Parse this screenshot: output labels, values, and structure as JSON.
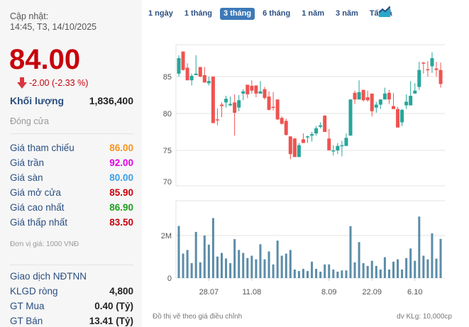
{
  "update": {
    "label": "Cập nhật:",
    "time": "14:45, T3, 14/10/2025"
  },
  "price": "84.00",
  "change": "-2.00 (-2.33 %)",
  "volume": {
    "label": "Khối lượng",
    "value": "1,836,400"
  },
  "status": "Đóng cửa",
  "stats": [
    {
      "label": "Giá tham chiếu",
      "value": "86.00",
      "color": "#f7941d"
    },
    {
      "label": "Giá trần",
      "value": "92.00",
      "color": "#e100e1"
    },
    {
      "label": "Giá sàn",
      "value": "80.00",
      "color": "#3aa0e8"
    },
    {
      "label": "Giá mở cửa",
      "value": "85.90",
      "color": "#c8000b"
    },
    {
      "label": "Giá cao nhất",
      "value": "86.90",
      "color": "#1f9e1f"
    },
    {
      "label": "Giá thấp nhất",
      "value": "83.50",
      "color": "#c8000b"
    }
  ],
  "unit_note": "Đơn vị giá: 1000 VNĐ",
  "foreign": {
    "title": "Giao dịch NĐTNN",
    "rows": [
      {
        "label": "KLGD ròng",
        "value": "4,800"
      },
      {
        "label": "GT Mua",
        "value": "0.40 (Tỷ)"
      },
      {
        "label": "GT Bán",
        "value": "13.41 (Tỷ)"
      }
    ]
  },
  "tabs": [
    "1 ngày",
    "1 tháng",
    "3 tháng",
    "6 tháng",
    "1 năm",
    "3 năm",
    "Tất cả"
  ],
  "active_tab": "3 tháng",
  "footer": {
    "left": "Đồ thị vẽ theo giá điều chỉnh",
    "right": "dv KLg: 10,000cp"
  },
  "chart_data": {
    "type": "candlestick",
    "colors": {
      "up": "#26a69a",
      "down": "#ef5350",
      "volume": "#5b8ca8"
    },
    "price_ticks": [
      70,
      75,
      80,
      85
    ],
    "volume_ticks": [
      {
        "v": 0,
        "label": "0"
      },
      {
        "v": 2,
        "label": "2M"
      }
    ],
    "x_ticks": [
      {
        "i": 7,
        "label": "28.07"
      },
      {
        "i": 17,
        "label": "11.08"
      },
      {
        "i": 35,
        "label": "8.09"
      },
      {
        "i": 45,
        "label": "22.09"
      },
      {
        "i": 55,
        "label": "6.10"
      }
    ],
    "ohlc": [
      [
        85.4,
        87.9,
        85.0,
        87.5
      ],
      [
        88.4,
        88.4,
        85.8,
        85.9
      ],
      [
        86.2,
        86.8,
        84.5,
        84.5
      ],
      [
        84.5,
        85.4,
        83.8,
        85.1
      ],
      [
        85.2,
        87.9,
        85.2,
        85.4
      ],
      [
        86.3,
        86.3,
        84.9,
        85.0
      ],
      [
        85.2,
        86.3,
        84.2,
        84.2
      ],
      [
        84.1,
        85.0,
        83.8,
        84.4
      ],
      [
        85.0,
        85.0,
        78.7,
        78.7
      ],
      [
        79.2,
        80.7,
        78.4,
        79.1
      ],
      [
        81.2,
        81.5,
        79.5,
        81.0
      ],
      [
        81.5,
        82.4,
        80.8,
        82.0
      ],
      [
        81.1,
        82.3,
        81.0,
        81.3
      ],
      [
        81.5,
        82.6,
        77.0,
        80.1
      ],
      [
        80.8,
        82.5,
        80.3,
        81.8
      ],
      [
        82.7,
        83.3,
        81.8,
        83.0
      ],
      [
        83.9,
        83.9,
        82.1,
        82.6
      ],
      [
        83.75,
        84.5,
        82.7,
        83.1
      ],
      [
        83.8,
        83.8,
        82.2,
        82.7
      ],
      [
        82.7,
        84.4,
        82.7,
        83.0
      ],
      [
        83.3,
        83.6,
        81.9,
        82.1
      ],
      [
        82.3,
        83.0,
        80.4,
        80.5
      ],
      [
        80.9,
        82.9,
        80.4,
        80.8
      ],
      [
        81.9,
        81.9,
        79.1,
        79.2
      ],
      [
        79.4,
        79.6,
        78.5,
        78.6
      ],
      [
        79.0,
        79.3,
        77.0,
        77.1
      ],
      [
        76.9,
        76.9,
        73.8,
        74.5
      ],
      [
        76.6,
        76.7,
        74.1,
        74.1
      ],
      [
        74.1,
        76.0,
        74.1,
        75.7
      ],
      [
        76.5,
        77.3,
        76.0,
        76.0
      ],
      [
        76.8,
        77.0,
        76.0,
        76.9
      ],
      [
        77.0,
        77.5,
        76.2,
        77.2
      ],
      [
        77.3,
        78.3,
        77.0,
        78.0
      ],
      [
        78.2,
        78.8,
        78.0,
        78.4
      ],
      [
        79.7,
        79.8,
        77.5,
        77.5
      ],
      [
        76.6,
        77.9,
        75.0,
        75.0
      ],
      [
        74.9,
        75.7,
        74.3,
        75.0
      ],
      [
        75.0,
        76.0,
        74.5,
        75.6
      ],
      [
        75.6,
        76.3,
        74.2,
        75.7
      ],
      [
        75.6,
        77.3,
        75.6,
        76.7
      ],
      [
        77.0,
        81.9,
        77.0,
        81.9
      ],
      [
        82.8,
        83.1,
        81.3,
        81.9
      ],
      [
        81.9,
        84.5,
        81.9,
        82.9
      ],
      [
        83.2,
        83.2,
        81.6,
        81.8
      ],
      [
        82.2,
        83.1,
        81.6,
        81.8
      ],
      [
        82.7,
        82.7,
        79.6,
        80.3
      ],
      [
        80.8,
        81.6,
        80.1,
        81.2
      ],
      [
        81.2,
        81.9,
        80.6,
        81.9
      ],
      [
        81.9,
        83.5,
        81.9,
        82.7
      ],
      [
        82.8,
        83.2,
        81.3,
        81.9
      ],
      [
        81.0,
        82.8,
        80.6,
        80.6
      ],
      [
        80.6,
        80.9,
        78.1,
        78.1
      ],
      [
        78.8,
        80.6,
        78.3,
        80.5
      ],
      [
        81.1,
        82.6,
        80.6,
        81.6
      ],
      [
        81.1,
        84.4,
        81.1,
        82.4
      ],
      [
        82.7,
        84.1,
        82.7,
        83.1
      ],
      [
        83.6,
        87.0,
        83.2,
        85.9
      ],
      [
        86.9,
        87.0,
        85.4,
        86.8
      ],
      [
        86.0,
        87.1,
        85.0,
        85.95
      ],
      [
        86.4,
        88.3,
        85.5,
        87.5
      ],
      [
        86.1,
        87.0,
        85.0,
        85.9
      ],
      [
        85.9,
        86.9,
        83.5,
        84.0
      ]
    ],
    "volume_millions": [
      2.45,
      1.15,
      1.32,
      0.7,
      2.17,
      0.74,
      2.0,
      1.57,
      2.82,
      1.01,
      1.18,
      0.92,
      0.7,
      1.83,
      1.32,
      1.18,
      0.94,
      1.05,
      0.88,
      1.59,
      0.88,
      1.25,
      0.64,
      1.76,
      1.05,
      1.15,
      1.32,
      0.4,
      0.33,
      0.43,
      0.33,
      0.77,
      0.43,
      0.3,
      0.64,
      0.64,
      0.4,
      0.3,
      0.36,
      0.36,
      2.44,
      0.74,
      1.69,
      0.7,
      0.57,
      0.81,
      0.57,
      0.4,
      0.98,
      0.4,
      0.77,
      0.88,
      0.4,
      0.94,
      1.39,
      0.81,
      2.89,
      1.05,
      0.88,
      2.1,
      0.91,
      1.84
    ]
  }
}
